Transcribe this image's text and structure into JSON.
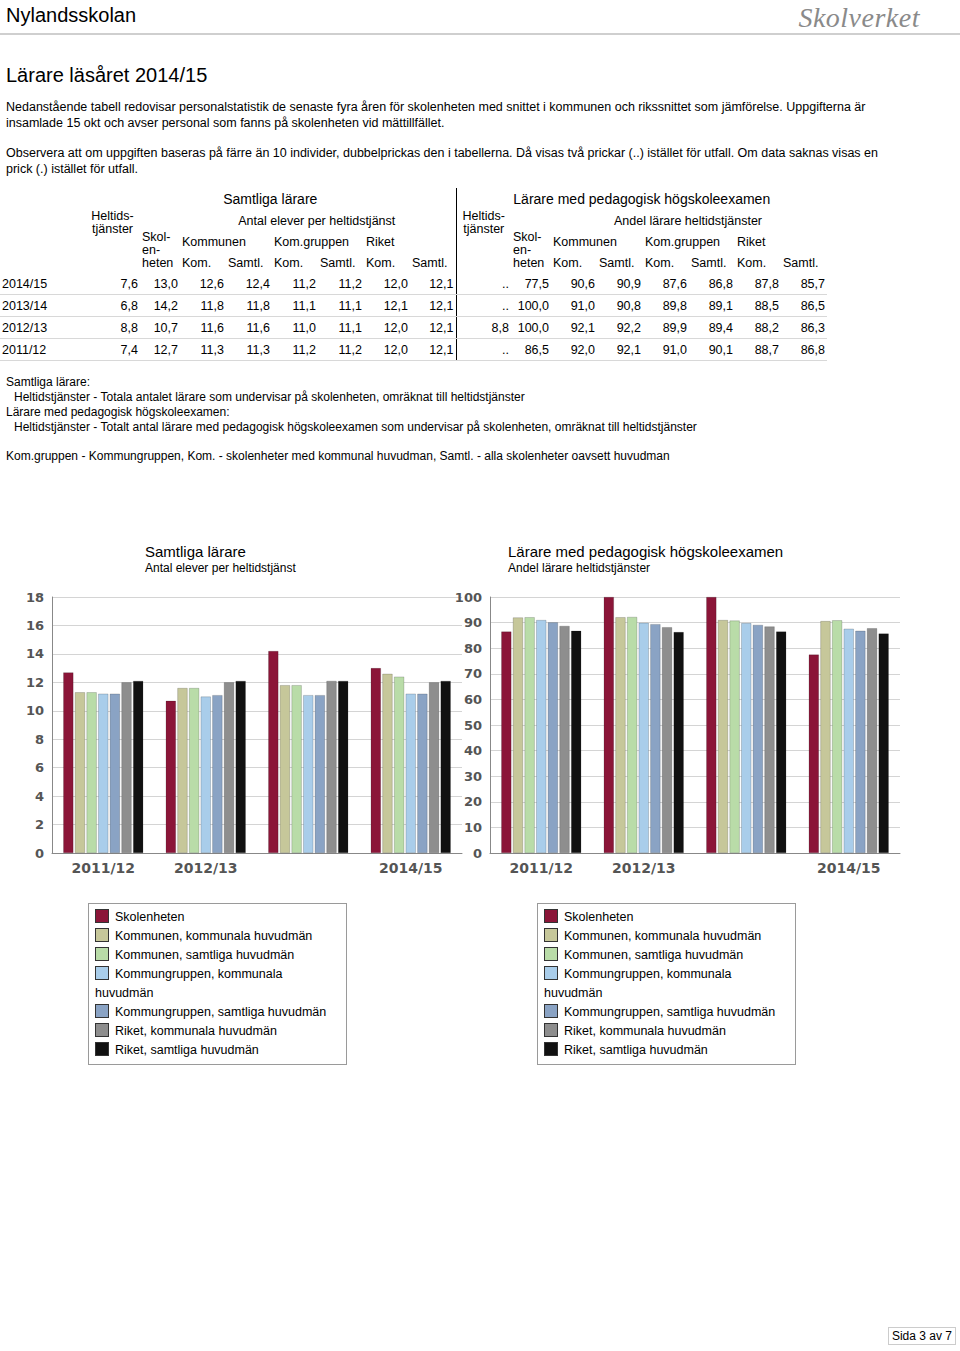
{
  "header": {
    "school": "Nylandsskolan",
    "logo": "Skolverket"
  },
  "title": "Lärare läsåret 2014/15",
  "paragraphs": [
    "Nedanstående tabell redovisar personalstatistik de senaste fyra åren för skolenheten med snittet i kommunen och rikssnittet som jämförelse. Uppgifterna är insamlade 15 okt och avser personal som fanns på skolenheten vid mättillfället.",
    "Observera att om uppgiften baseras på färre än 10 individer, dubbelprickas den i tabellerna. Då visas två prickar (..) istället för utfall. Om data saknas visas en prick (.) istället för utfall."
  ],
  "table": {
    "groups": [
      {
        "title": "Samtliga lärare",
        "measure": "Antal elever per heltidstjänst"
      },
      {
        "title": "Lärare med pedagogisk högskoleexamen",
        "measure": "Andel lärare heltidstjänster"
      }
    ],
    "fte_header": [
      "Heltids-",
      "tjänster"
    ],
    "unit_header": [
      "Skol-",
      "en-",
      "heten"
    ],
    "areas": [
      "Kommunen",
      "Kom.gruppen",
      "Riket"
    ],
    "kinds": [
      "Kom.",
      "Samtl."
    ],
    "rows": [
      [
        "2014/15",
        "7,6",
        "13,0",
        "12,6",
        "12,4",
        "11,2",
        "11,2",
        "12,0",
        "12,1",
        "..",
        "77,5",
        "90,6",
        "90,9",
        "87,6",
        "86,8",
        "87,8",
        "85,7"
      ],
      [
        "2013/14",
        "6,8",
        "14,2",
        "11,8",
        "11,8",
        "11,1",
        "11,1",
        "12,1",
        "12,1",
        "..",
        "100,0",
        "91,0",
        "90,8",
        "89,8",
        "89,1",
        "88,5",
        "86,5"
      ],
      [
        "2012/13",
        "8,8",
        "10,7",
        "11,6",
        "11,6",
        "11,0",
        "11,1",
        "12,0",
        "12,1",
        "8,8",
        "100,0",
        "92,1",
        "92,2",
        "89,9",
        "89,4",
        "88,2",
        "86,3"
      ],
      [
        "2011/12",
        "7,4",
        "12,7",
        "11,3",
        "11,3",
        "11,2",
        "11,2",
        "12,0",
        "12,1",
        "..",
        "86,5",
        "92,0",
        "92,1",
        "91,0",
        "90,1",
        "88,7",
        "86,8"
      ]
    ]
  },
  "notes": [
    "Samtliga lärare:",
    "Heltidstjänster - Totala antalet lärare som undervisar på skolenheten, omräknat till heltidstjänster",
    "Lärare med pedagogisk högskoleexamen:",
    "Heltidstjänster - Totalt antal lärare med pedagogisk högskoleexamen som undervisar på skolenheten, omräknat till heltidstjänster",
    "Kom.gruppen - Kommungruppen, Kom. - skolenheter med kommunal huvudman, Samtl. - alla skolenheter oavsett huvudman"
  ],
  "chart_data": [
    {
      "type": "bar",
      "title": "Samtliga lärare",
      "subtitle": "Antal elever per heltidstjänst",
      "categories": [
        "2011/12",
        "2012/13",
        null,
        "2014/15"
      ],
      "series": [
        {
          "name": "Skolenheten",
          "color": "#8b1538",
          "values": [
            12.7,
            10.7,
            14.2,
            13.0
          ]
        },
        {
          "name": "Kommunen, kommunala huvudmän",
          "color": "#c6c79a",
          "values": [
            11.3,
            11.6,
            11.8,
            12.6
          ]
        },
        {
          "name": "Kommunen, samtliga huvudmän",
          "color": "#b9dca8",
          "values": [
            11.3,
            11.6,
            11.8,
            12.4
          ]
        },
        {
          "name": "Kommungruppen, kommunala huvudmän",
          "color": "#a9cdea",
          "values": [
            11.2,
            11.0,
            11.1,
            11.2
          ]
        },
        {
          "name": "Kommungruppen, samtliga huvudmän",
          "color": "#8aa3c4",
          "values": [
            11.2,
            11.1,
            11.1,
            11.2
          ]
        },
        {
          "name": "Riket, kommunala huvudmän",
          "color": "#8e8e8e",
          "values": [
            12.0,
            12.0,
            12.1,
            12.0
          ]
        },
        {
          "name": "Riket, samtliga huvudmän",
          "color": "#111111",
          "values": [
            12.1,
            12.1,
            12.1,
            12.1
          ]
        }
      ],
      "ylim": [
        0,
        18
      ],
      "yticks": [
        0,
        2,
        4,
        6,
        8,
        10,
        12,
        14,
        16,
        18
      ],
      "grid": true,
      "legend": "bottom"
    },
    {
      "type": "bar",
      "title": "Lärare med pedagogisk högskoleexamen",
      "subtitle": "Andel lärare heltidstjänster",
      "categories": [
        "2011/12",
        "2012/13",
        null,
        "2014/15"
      ],
      "series": [
        {
          "name": "Skolenheten",
          "color": "#8b1538",
          "values": [
            86.5,
            100.0,
            100.0,
            77.5
          ]
        },
        {
          "name": "Kommunen, kommunala huvudmän",
          "color": "#c6c79a",
          "values": [
            92.0,
            92.1,
            91.0,
            90.6
          ]
        },
        {
          "name": "Kommunen, samtliga huvudmän",
          "color": "#b9dca8",
          "values": [
            92.1,
            92.2,
            90.8,
            90.9
          ]
        },
        {
          "name": "Kommungruppen, kommunala huvudmän",
          "color": "#a9cdea",
          "values": [
            91.0,
            89.9,
            89.8,
            87.6
          ]
        },
        {
          "name": "Kommungruppen, samtliga huvudmän",
          "color": "#8aa3c4",
          "values": [
            90.1,
            89.4,
            89.1,
            86.8
          ]
        },
        {
          "name": "Riket, kommunala huvudmän",
          "color": "#8e8e8e",
          "values": [
            88.7,
            88.2,
            88.5,
            87.8
          ]
        },
        {
          "name": "Riket, samtliga huvudmän",
          "color": "#111111",
          "values": [
            86.8,
            86.3,
            86.5,
            85.7
          ]
        }
      ],
      "ylim": [
        0,
        100
      ],
      "yticks": [
        0,
        10,
        20,
        30,
        40,
        50,
        60,
        70,
        80,
        90,
        100
      ],
      "grid": true,
      "legend": "bottom"
    }
  ],
  "footer": "Sida 3 av 7"
}
